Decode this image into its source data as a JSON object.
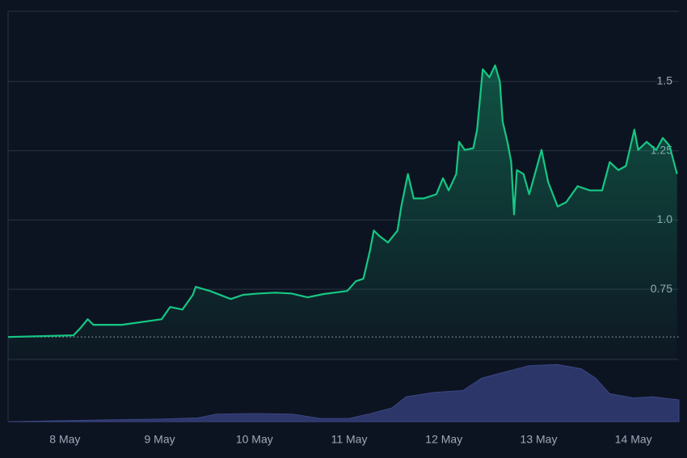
{
  "chart_data": [
    {
      "type": "line",
      "color": "#16c784",
      "fill": true,
      "grid": true,
      "x": [
        7.4,
        8.09,
        8.17,
        8.24,
        8.3,
        8.6,
        9.02,
        9.11,
        9.24,
        9.35,
        9.38,
        9.53,
        9.75,
        9.88,
        10.05,
        10.22,
        10.39,
        10.56,
        10.73,
        10.98,
        11.07,
        11.15,
        11.22,
        11.26,
        11.32,
        11.41,
        11.51,
        11.55,
        11.62,
        11.68,
        11.79,
        11.92,
        11.99,
        12.05,
        12.13,
        12.16,
        12.22,
        12.31,
        12.35,
        12.41,
        12.48,
        12.54,
        12.59,
        12.62,
        12.67,
        12.71,
        12.74,
        12.77,
        12.84,
        12.9,
        12.96,
        13.03,
        13.1,
        13.2,
        13.29,
        13.41,
        13.54,
        13.67,
        13.75,
        13.84,
        13.92,
        14.01,
        14.05,
        14.14,
        14.24,
        14.31,
        14.38,
        14.46
      ],
      "values": [
        0.578,
        0.584,
        0.613,
        0.642,
        0.622,
        0.622,
        0.642,
        0.686,
        0.677,
        0.73,
        0.759,
        0.744,
        0.715,
        0.73,
        0.735,
        0.738,
        0.735,
        0.721,
        0.733,
        0.744,
        0.779,
        0.788,
        0.89,
        0.962,
        0.942,
        0.919,
        0.962,
        1.049,
        1.166,
        1.078,
        1.078,
        1.093,
        1.151,
        1.107,
        1.166,
        1.282,
        1.253,
        1.259,
        1.326,
        1.544,
        1.515,
        1.558,
        1.5,
        1.355,
        1.282,
        1.209,
        1.02,
        1.18,
        1.166,
        1.093,
        1.166,
        1.253,
        1.137,
        1.049,
        1.064,
        1.122,
        1.107,
        1.107,
        1.209,
        1.18,
        1.195,
        1.326,
        1.253,
        1.282,
        1.253,
        1.296,
        1.268,
        1.166
      ],
      "baseline": 0.578,
      "xlim": [
        7.4,
        14.48
      ],
      "xticks": [
        {
          "value": 8,
          "label": "8 May"
        },
        {
          "value": 9,
          "label": "9 May"
        },
        {
          "value": 10,
          "label": "10 May"
        },
        {
          "value": 11,
          "label": "11 May"
        },
        {
          "value": 12,
          "label": "12 May"
        },
        {
          "value": 13,
          "label": "13 May"
        },
        {
          "value": 14,
          "label": "14 May"
        }
      ],
      "ylim": [
        0.497,
        1.753
      ],
      "yticks": [
        0.75,
        {
          "value": 1,
          "label": "1.0"
        },
        1.25,
        1.5
      ]
    },
    {
      "type": "area",
      "color": "#2c3668",
      "x": [
        7.4,
        8.15,
        8.5,
        9.0,
        9.4,
        9.6,
        10.0,
        10.4,
        10.7,
        11.0,
        11.2,
        11.45,
        11.6,
        11.9,
        12.2,
        12.4,
        12.6,
        12.9,
        13.2,
        13.45,
        13.6,
        13.75,
        14.0,
        14.2,
        14.48
      ],
      "values": [
        0,
        2,
        3,
        4,
        6,
        12,
        13,
        12,
        5,
        5,
        12,
        22,
        40,
        47,
        50,
        70,
        78,
        90,
        92,
        85,
        70,
        45,
        38,
        40,
        35
      ],
      "xlim": [
        7.4,
        14.48
      ],
      "ylim": [
        0,
        100
      ]
    }
  ]
}
